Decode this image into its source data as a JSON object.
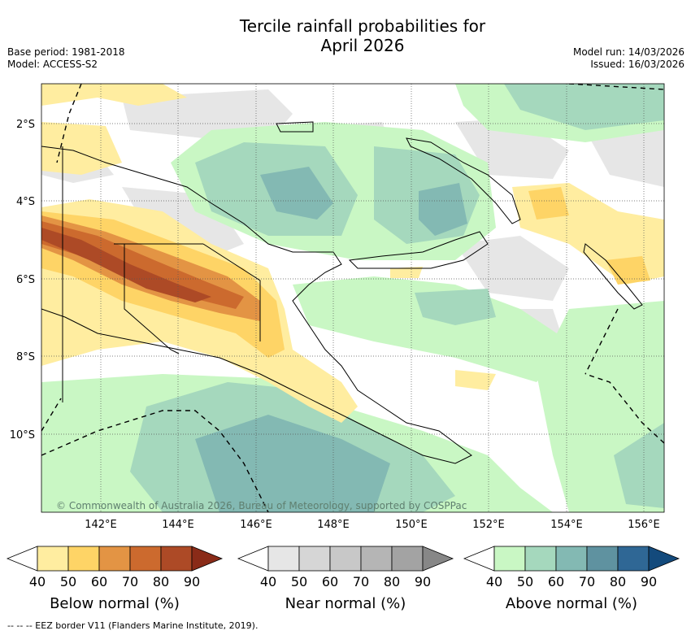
{
  "title_line1": "Tercile rainfall probabilities for",
  "title_line2": "April 2026",
  "base_period": "Base period: 1981-2018",
  "model": "Model: ACCESS-S2",
  "model_run": "Model run: 14/03/2026",
  "issued": "Issued: 16/03/2026",
  "copyright": "© Commonwealth of Australia 2026, Bureau of Meteorology, supported by COSPPac",
  "lat_labels": [
    "2°S",
    "4°S",
    "6°S",
    "8°S",
    "10°S"
  ],
  "lon_labels": [
    "142°E",
    "144°E",
    "146°E",
    "148°E",
    "150°E",
    "152°E",
    "154°E",
    "156°E"
  ],
  "legends": [
    {
      "label": "Below normal (%)",
      "ticks": [
        "40",
        "50",
        "60",
        "70",
        "80",
        "90"
      ],
      "colors": [
        "#ffeda0",
        "#fed466",
        "#e39444",
        "#cc6a2e",
        "#ad4a26",
        "#8a2b18"
      ]
    },
    {
      "label": "Near normal (%)",
      "ticks": [
        "40",
        "50",
        "60",
        "70",
        "80",
        "90"
      ],
      "colors": [
        "#e6e6e6",
        "#d6d6d6",
        "#c8c8c8",
        "#b5b5b5",
        "#a3a3a3",
        "#878787"
      ]
    },
    {
      "label": "Above normal (%)",
      "ticks": [
        "40",
        "50",
        "60",
        "70",
        "80",
        "90"
      ],
      "colors": [
        "#c9f7c4",
        "#a5d8bd",
        "#83b9b3",
        "#5f92a0",
        "#2f6795",
        "#134a7c"
      ]
    }
  ],
  "eez_note": "--  --  -- EEZ border V11 (Flanders Marine Institute, 2019)."
}
